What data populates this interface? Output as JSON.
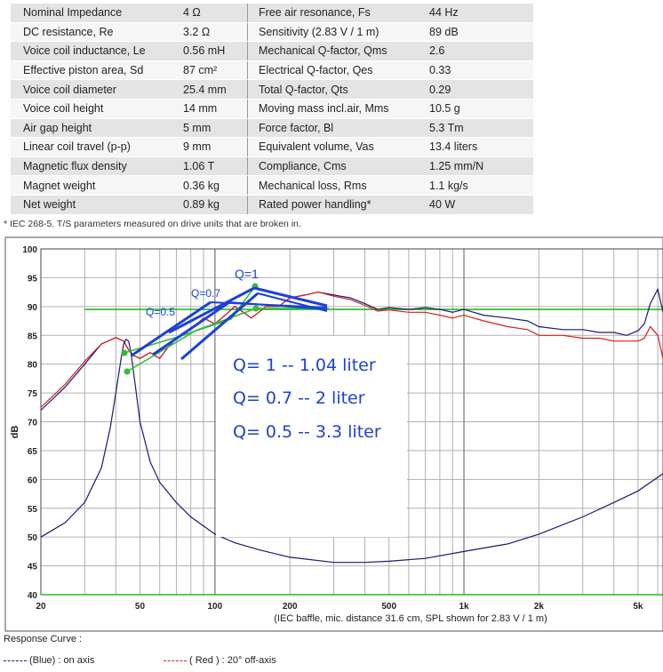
{
  "spec_table": {
    "rows": [
      {
        "name": "Nominal Impedance",
        "value": "4 Ω",
        "name2": "Free air resonance, Fs",
        "value2": "44 Hz"
      },
      {
        "name": "DC resistance, Re",
        "value": "3.2 Ω",
        "name2": "Sensitivity (2.83 V / 1 m)",
        "value2": "89 dB"
      },
      {
        "name": "Voice coil inductance, Le",
        "value": "0.56 mH",
        "name2": "Mechanical Q-factor, Qms",
        "value2": "2.6"
      },
      {
        "name": "Effective piston area, Sd",
        "value": "87 cm²",
        "name2": "Electrical Q-factor, Qes",
        "value2": "0.33"
      },
      {
        "name": "Voice coil diameter",
        "value": "25.4 mm",
        "name2": "Total Q-factor, Qts",
        "value2": "0.29"
      },
      {
        "name": "Voice coil height",
        "value": "14 mm",
        "name2": "Moving mass incl.air, Mms",
        "value2": "10.5 g"
      },
      {
        "name": "Air gap height",
        "value": "5 mm",
        "name2": "Force factor, Bl",
        "value2": "5.3 Tm"
      },
      {
        "name": "Linear coil travel (p-p)",
        "value": "9 mm",
        "name2": "Equivalent volume, Vas",
        "value2": "13.4 liters"
      },
      {
        "name": "Magnetic flux density",
        "value": "1.06 T",
        "name2": "Compliance, Cms",
        "value2": "1.25 mm/N"
      },
      {
        "name": "Magnet weight",
        "value": "0.36 kg",
        "name2": "Mechanical loss, Rms",
        "value2": "1.1 kg/s"
      },
      {
        "name": "Net weight",
        "value": "0.89 kg",
        "name2": "Rated power handling*",
        "value2": "40 W"
      }
    ],
    "footnote": "* IEC 268-5. T/S parameters measured on drive units that are broken in."
  },
  "chart_data": {
    "type": "line",
    "x_scale": "log",
    "xlim": [
      20,
      6300
    ],
    "ylim": [
      40,
      100
    ],
    "ylabel": "dB",
    "xlabel": "(IEC baffle, mic. distance 31.6 cm, SPL shown for 2.83 V / 1 m)",
    "x_ticks": [
      {
        "v": 20,
        "label": "20"
      },
      {
        "v": 50,
        "label": "50"
      },
      {
        "v": 100,
        "label": "100"
      },
      {
        "v": 200,
        "label": "200"
      },
      {
        "v": 500,
        "label": "500"
      },
      {
        "v": 1000,
        "label": "1k"
      },
      {
        "v": 2000,
        "label": "2k"
      },
      {
        "v": 5000,
        "label": "5k"
      }
    ],
    "y_ticks": [
      40,
      45,
      50,
      55,
      60,
      65,
      70,
      75,
      80,
      85,
      90,
      95,
      100
    ],
    "grid": true,
    "series": [
      {
        "name": "(Blue) : on axis",
        "color": "#1a1a6e",
        "x": [
          20,
          25,
          30,
          35,
          40,
          43,
          45,
          47,
          50,
          55,
          60,
          65,
          70,
          75,
          80,
          90,
          100,
          110,
          120,
          130,
          140,
          150,
          160,
          180,
          200,
          230,
          260,
          300,
          350,
          400,
          450,
          500,
          600,
          700,
          800,
          900,
          1000,
          1200,
          1500,
          1800,
          2000,
          2500,
          3000,
          3500,
          4000,
          4500,
          5000,
          5300,
          5600,
          6000,
          6300
        ],
        "y": [
          72,
          76,
          80,
          83.5,
          84.6,
          84,
          82.5,
          81.5,
          81,
          82,
          81,
          83,
          84.5,
          85.5,
          86,
          88,
          87,
          88.5,
          90,
          89,
          88,
          89,
          90,
          90,
          91.5,
          92,
          92.5,
          92,
          91.5,
          90.5,
          89.5,
          89.8,
          89.5,
          89.8,
          89.5,
          89,
          89.5,
          88.5,
          88,
          87.5,
          86.5,
          86,
          86,
          85.5,
          85.5,
          85,
          85.8,
          87,
          90.5,
          93,
          89
        ]
      },
      {
        "name": "( Red ) : 20° off-axis",
        "color": "#d42020",
        "x": [
          20,
          25,
          30,
          35,
          40,
          43,
          45,
          47,
          50,
          55,
          60,
          65,
          70,
          75,
          80,
          90,
          100,
          110,
          120,
          130,
          140,
          150,
          160,
          180,
          200,
          230,
          260,
          300,
          350,
          400,
          450,
          500,
          600,
          700,
          800,
          900,
          1000,
          1200,
          1500,
          1800,
          2000,
          2500,
          3000,
          3500,
          4000,
          4500,
          5000,
          5300,
          5600,
          6000,
          6300
        ],
        "y": [
          72.5,
          76.5,
          80.5,
          83.5,
          84.6,
          84,
          82.5,
          81.5,
          81,
          82,
          81,
          83,
          84.5,
          85.5,
          86,
          88,
          87,
          88.5,
          90,
          89,
          88,
          89,
          90,
          90,
          91.5,
          92,
          92.5,
          91.8,
          91.2,
          90.2,
          89.2,
          89.4,
          89,
          89,
          88.5,
          88,
          88.5,
          87.5,
          86.5,
          86,
          85,
          85,
          84.5,
          84.5,
          84,
          84,
          84,
          84.5,
          86.5,
          85,
          81
        ]
      },
      {
        "name": "Impedance",
        "color": "#1a1a6e",
        "x": [
          20,
          25,
          30,
          35,
          38,
          40,
          42,
          43,
          44,
          45,
          46,
          48,
          50,
          55,
          60,
          70,
          80,
          100,
          120,
          150,
          200,
          300,
          400,
          500,
          700,
          1000,
          1500,
          2000,
          3000,
          4000,
          5000,
          6300
        ],
        "y": [
          50,
          52.5,
          56,
          62,
          69,
          75,
          81,
          83.5,
          84.3,
          84,
          82,
          76,
          70,
          63,
          59.5,
          56,
          53.5,
          50.5,
          49,
          47.8,
          46.5,
          45.6,
          45.6,
          45.8,
          46.3,
          47.5,
          48.8,
          50.5,
          53.5,
          56,
          58,
          61
        ]
      }
    ],
    "references": [
      {
        "name": "horizontal green line",
        "color": "#22bb22",
        "x": [
          30,
          6300
        ],
        "y": [
          89.5,
          89.5
        ]
      },
      {
        "name": "horizontal green line 2",
        "color": "#22bb22",
        "x": [
          20,
          6300
        ],
        "y": [
          40,
          40
        ]
      }
    ]
  },
  "annotations": {
    "q_labels": [
      {
        "text": "Q=1"
      },
      {
        "text": "Q=0.7"
      },
      {
        "text": "Q=0.5"
      }
    ],
    "box_lines": [
      "Q= 1 -- 1.04 liter",
      "Q= 0.7 -- 2 liter",
      "Q= 0.5 -- 3.3 liter"
    ]
  },
  "legend": {
    "title": "Response Curve :",
    "items": [
      {
        "label": "(Blue) : on axis",
        "color": "#1a1a6e"
      },
      {
        "label": "( Red ) : 20° off-axis",
        "color": "#d42020"
      }
    ]
  }
}
